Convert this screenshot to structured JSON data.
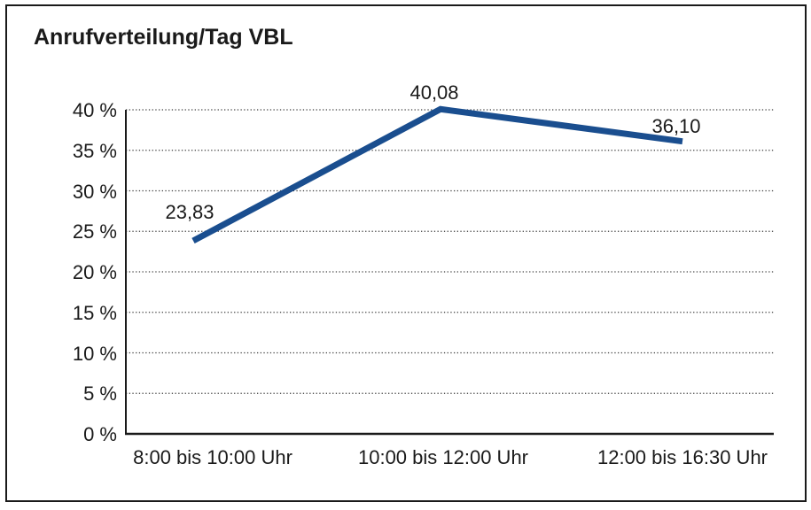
{
  "colors": {
    "line": "#1a4e8f",
    "grid": "#3d3d3d",
    "axis": "#1a1a1a",
    "text": "#1a1a1a",
    "border": "#1a1a1a",
    "background": "#ffffff"
  },
  "chart_data": {
    "type": "line",
    "title": "Anrufverteilung/Tag VBL",
    "categories": [
      "8:00 bis 10:00 Uhr",
      "10:00 bis 12:00 Uhr",
      "12:00 bis 16:30 Uhr"
    ],
    "values": [
      23.83,
      40.08,
      36.1
    ],
    "value_labels": [
      "23,83",
      "40,08",
      "36,10"
    ],
    "xlabel": "",
    "ylabel": "",
    "ylim": [
      0,
      40
    ],
    "ytick_values": [
      0,
      5,
      10,
      15,
      20,
      25,
      30,
      35,
      40
    ],
    "ytick_labels": [
      "0 %",
      "5 %",
      "10 %",
      "15 %",
      "20 %",
      "25 %",
      "30 %",
      "35 %",
      "40 %"
    ],
    "grid": "horizontal-dotted",
    "legend": "none",
    "line_color": "#1a4e8f"
  }
}
